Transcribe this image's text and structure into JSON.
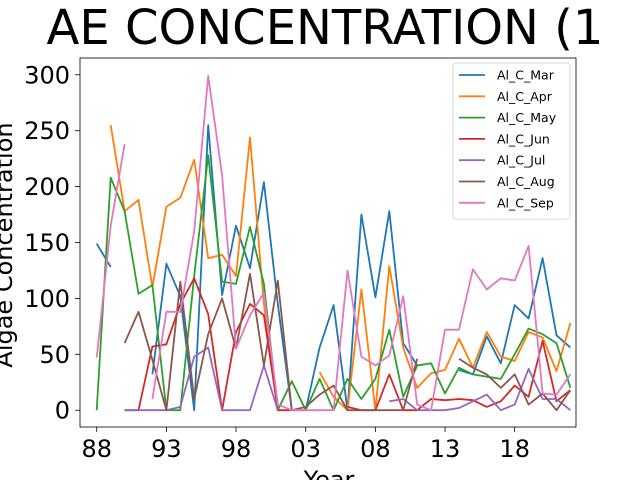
{
  "chart_data": {
    "type": "line",
    "title": "AE CONCENTRATION (1",
    "xlabel": "Year",
    "ylabel": "Algae Concentration",
    "xlim": [
      1986.8,
      2022.4
    ],
    "ylim": [
      -15,
      315
    ],
    "x_ticks": [
      {
        "value": 1988,
        "label": "88"
      },
      {
        "value": 1993,
        "label": "93"
      },
      {
        "value": 1998,
        "label": "98"
      },
      {
        "value": 2003,
        "label": "03"
      },
      {
        "value": 2008,
        "label": "08"
      },
      {
        "value": 2013,
        "label": "13"
      },
      {
        "value": 2018,
        "label": "18"
      }
    ],
    "y_ticks": [
      0,
      50,
      100,
      150,
      200,
      250,
      300
    ],
    "grid": false,
    "legend_position": "top-right",
    "series": [
      {
        "name": "Al_C_Mar",
        "color": "#1f77b4",
        "points": [
          [
            1988,
            149
          ],
          [
            1989,
            128
          ],
          [
            1992,
            32
          ],
          [
            1993,
            131
          ],
          [
            1994,
            102
          ],
          [
            1995,
            0
          ],
          [
            1996,
            255
          ],
          [
            1997,
            103
          ],
          [
            1998,
            165
          ],
          [
            1999,
            127
          ],
          [
            2000,
            204
          ],
          [
            2001,
            95
          ],
          [
            2002,
            0
          ],
          [
            2003,
            0
          ],
          [
            2004,
            56
          ],
          [
            2005,
            94
          ],
          [
            2006,
            0
          ],
          [
            2007,
            175
          ],
          [
            2008,
            101
          ],
          [
            2009,
            178
          ],
          [
            2010,
            60
          ],
          [
            2011,
            40
          ],
          [
            2014,
            36
          ],
          [
            2015,
            32
          ],
          [
            2016,
            66
          ],
          [
            2017,
            42
          ],
          [
            2018,
            94
          ],
          [
            2019,
            82
          ],
          [
            2020,
            136
          ],
          [
            2021,
            67
          ],
          [
            2022,
            56
          ]
        ]
      },
      {
        "name": "Al_C_Apr",
        "color": "#ff7f0e",
        "points": [
          [
            1989,
            255
          ],
          [
            1990,
            178
          ],
          [
            1991,
            188
          ],
          [
            1992,
            110
          ],
          [
            1993,
            182
          ],
          [
            1994,
            190
          ],
          [
            1995,
            224
          ],
          [
            1996,
            136
          ],
          [
            1997,
            139
          ],
          [
            1998,
            120
          ],
          [
            1999,
            244
          ],
          [
            2000,
            95
          ],
          [
            2001,
            0
          ],
          [
            2004,
            34
          ],
          [
            2005,
            12
          ],
          [
            2006,
            0
          ],
          [
            2007,
            108
          ],
          [
            2008,
            0
          ],
          [
            2009,
            129
          ],
          [
            2010,
            56
          ],
          [
            2011,
            20
          ],
          [
            2012,
            33
          ],
          [
            2013,
            36
          ],
          [
            2014,
            64
          ],
          [
            2015,
            38
          ],
          [
            2016,
            70
          ],
          [
            2017,
            48
          ],
          [
            2018,
            44
          ],
          [
            2019,
            70
          ],
          [
            2020,
            65
          ],
          [
            2021,
            35
          ],
          [
            2022,
            78
          ]
        ]
      },
      {
        "name": "Al_C_May",
        "color": "#2ca02c",
        "points": [
          [
            1988,
            0
          ],
          [
            1989,
            208
          ],
          [
            1990,
            178
          ],
          [
            1991,
            104
          ],
          [
            1992,
            112
          ],
          [
            1993,
            0
          ],
          [
            1994,
            0
          ],
          [
            1995,
            120
          ],
          [
            1996,
            228
          ],
          [
            1997,
            115
          ],
          [
            1998,
            113
          ],
          [
            1999,
            164
          ],
          [
            2000,
            113
          ],
          [
            2001,
            0
          ],
          [
            2002,
            26
          ],
          [
            2003,
            0
          ],
          [
            2004,
            28
          ],
          [
            2005,
            0
          ],
          [
            2006,
            28
          ],
          [
            2007,
            10
          ],
          [
            2008,
            28
          ],
          [
            2009,
            72
          ],
          [
            2010,
            12
          ],
          [
            2011,
            40
          ],
          [
            2012,
            42
          ],
          [
            2013,
            15
          ],
          [
            2014,
            38
          ],
          [
            2015,
            32
          ],
          [
            2016,
            30
          ],
          [
            2017,
            28
          ],
          [
            2018,
            50
          ],
          [
            2019,
            73
          ],
          [
            2020,
            68
          ],
          [
            2021,
            60
          ],
          [
            2022,
            20
          ]
        ]
      },
      {
        "name": "Al_C_Jun",
        "color": "#d62728",
        "points": [
          [
            1990,
            0
          ],
          [
            1991,
            0
          ],
          [
            1992,
            57
          ],
          [
            1993,
            59
          ],
          [
            1994,
            95
          ],
          [
            1995,
            118
          ],
          [
            1996,
            86
          ],
          [
            1997,
            0
          ],
          [
            1998,
            70
          ],
          [
            1999,
            95
          ],
          [
            2000,
            85
          ],
          [
            2001,
            0
          ],
          [
            2002,
            0
          ],
          [
            2006,
            3
          ],
          [
            2007,
            0
          ],
          [
            2008,
            0
          ],
          [
            2009,
            32
          ],
          [
            2010,
            0
          ],
          [
            2011,
            0
          ],
          [
            2012,
            10
          ],
          [
            2013,
            9
          ],
          [
            2014,
            10
          ],
          [
            2015,
            9
          ],
          [
            2016,
            3
          ],
          [
            2017,
            8
          ],
          [
            2018,
            22
          ],
          [
            2019,
            12
          ],
          [
            2020,
            62
          ],
          [
            2021,
            8
          ],
          [
            2022,
            18
          ]
        ]
      },
      {
        "name": "Al_C_Jul",
        "color": "#9467bd",
        "points": [
          [
            1990,
            0
          ],
          [
            1991,
            0
          ],
          [
            1992,
            0
          ],
          [
            1993,
            0
          ],
          [
            1994,
            3
          ],
          [
            1995,
            48
          ],
          [
            1996,
            56
          ],
          [
            1997,
            0
          ],
          [
            1998,
            0
          ],
          [
            1999,
            0
          ],
          [
            2000,
            40
          ],
          [
            2001,
            0
          ],
          [
            2009,
            8
          ],
          [
            2010,
            10
          ],
          [
            2011,
            0
          ],
          [
            2012,
            0
          ],
          [
            2013,
            0
          ],
          [
            2014,
            2
          ],
          [
            2015,
            8
          ],
          [
            2016,
            14
          ],
          [
            2017,
            0
          ],
          [
            2018,
            5
          ],
          [
            2019,
            37
          ],
          [
            2020,
            10
          ],
          [
            2021,
            10
          ],
          [
            2022,
            0
          ]
        ]
      },
      {
        "name": "Al_C_Aug",
        "color": "#8c564b",
        "points": [
          [
            1990,
            60
          ],
          [
            1991,
            88
          ],
          [
            1992,
            45
          ],
          [
            1993,
            0
          ],
          [
            1994,
            115
          ],
          [
            1995,
            10
          ],
          [
            1996,
            68
          ],
          [
            1997,
            100
          ],
          [
            1998,
            55
          ],
          [
            1999,
            122
          ],
          [
            2000,
            40
          ],
          [
            2001,
            116
          ],
          [
            2002,
            0
          ],
          [
            2003,
            3
          ],
          [
            2004,
            14
          ],
          [
            2005,
            22
          ],
          [
            2006,
            0
          ],
          [
            2007,
            0
          ],
          [
            2008,
            0
          ],
          [
            2009,
            0
          ],
          [
            2010,
            0
          ],
          [
            2011,
            46
          ],
          [
            2014,
            46
          ],
          [
            2015,
            38
          ],
          [
            2016,
            32
          ],
          [
            2017,
            20
          ],
          [
            2018,
            32
          ],
          [
            2019,
            5
          ],
          [
            2020,
            15
          ],
          [
            2021,
            0
          ],
          [
            2022,
            18
          ]
        ]
      },
      {
        "name": "Al_C_Sep",
        "color": "#e377c2",
        "points": [
          [
            1988,
            47
          ],
          [
            1989,
            165
          ],
          [
            1990,
            238
          ],
          [
            1992,
            10
          ],
          [
            1993,
            88
          ],
          [
            1994,
            88
          ],
          [
            1995,
            160
          ],
          [
            1996,
            299
          ],
          [
            1997,
            210
          ],
          [
            1998,
            55
          ],
          [
            1999,
            85
          ],
          [
            2000,
            105
          ],
          [
            2001,
            5
          ],
          [
            2002,
            0
          ],
          [
            2003,
            0
          ],
          [
            2004,
            0
          ],
          [
            2005,
            0
          ],
          [
            2006,
            125
          ],
          [
            2007,
            48
          ],
          [
            2008,
            40
          ],
          [
            2009,
            49
          ],
          [
            2010,
            102
          ],
          [
            2011,
            5
          ],
          [
            2012,
            0
          ],
          [
            2013,
            72
          ],
          [
            2014,
            72
          ],
          [
            2015,
            126
          ],
          [
            2016,
            108
          ],
          [
            2017,
            118
          ],
          [
            2018,
            116
          ],
          [
            2019,
            147
          ],
          [
            2020,
            15
          ],
          [
            2021,
            14
          ],
          [
            2022,
            32
          ]
        ]
      }
    ]
  }
}
